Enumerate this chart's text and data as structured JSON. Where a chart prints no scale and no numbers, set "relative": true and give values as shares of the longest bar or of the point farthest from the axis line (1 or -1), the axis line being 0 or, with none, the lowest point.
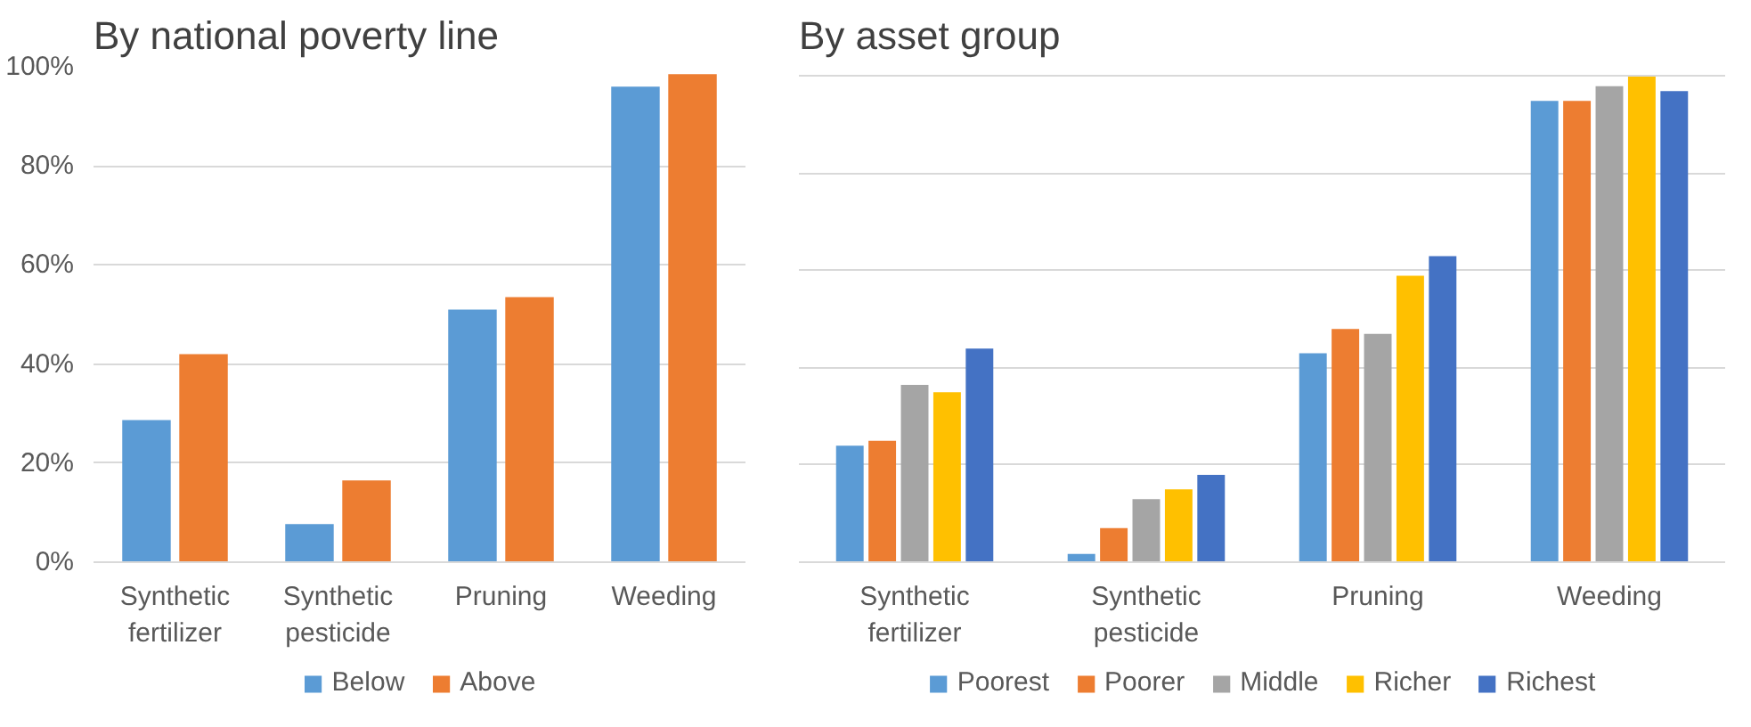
{
  "chart_data": [
    {
      "type": "bar",
      "title": "By national poverty line",
      "categories": [
        "Synthetic fertilizer",
        "Synthetic pesticide",
        "Pruning",
        "Weeding"
      ],
      "series": [
        {
          "name": "Below",
          "color": "#5b9bd5",
          "values": [
            28.7,
            7.7,
            51,
            96
          ]
        },
        {
          "name": "Above",
          "color": "#ed7d31",
          "values": [
            42,
            16.5,
            53.5,
            98.5
          ]
        }
      ],
      "ylim": [
        0,
        100
      ],
      "yticks": [
        {
          "value": 0,
          "label": "0%"
        },
        {
          "value": 20,
          "label": "20%"
        },
        {
          "value": 40,
          "label": "40%"
        },
        {
          "value": 60,
          "label": "60%"
        },
        {
          "value": 80,
          "label": "80%"
        },
        {
          "value": 100,
          "label": "100%"
        }
      ],
      "grid": "y",
      "legend": "bottom"
    },
    {
      "type": "bar",
      "title": "By asset group",
      "relative": true,
      "categories": [
        "Synthetic fertilizer",
        "Synthetic pesticide",
        "Pruning",
        "Weeding"
      ],
      "series": [
        {
          "name": "Poorest",
          "color": "#5b9bd5",
          "values": [
            0.24,
            0.017,
            0.43,
            0.95
          ]
        },
        {
          "name": "Poorer",
          "color": "#ed7d31",
          "values": [
            0.25,
            0.07,
            0.48,
            0.95
          ]
        },
        {
          "name": "Middle",
          "color": "#a5a5a5",
          "values": [
            0.365,
            0.13,
            0.47,
            0.98
          ]
        },
        {
          "name": "Richer",
          "color": "#ffc000",
          "values": [
            0.35,
            0.15,
            0.59,
            1.0
          ]
        },
        {
          "name": "Richest",
          "color": "#4472c4",
          "values": [
            0.44,
            0.18,
            0.63,
            0.97
          ]
        }
      ],
      "grid": "y",
      "legend": "bottom"
    }
  ]
}
